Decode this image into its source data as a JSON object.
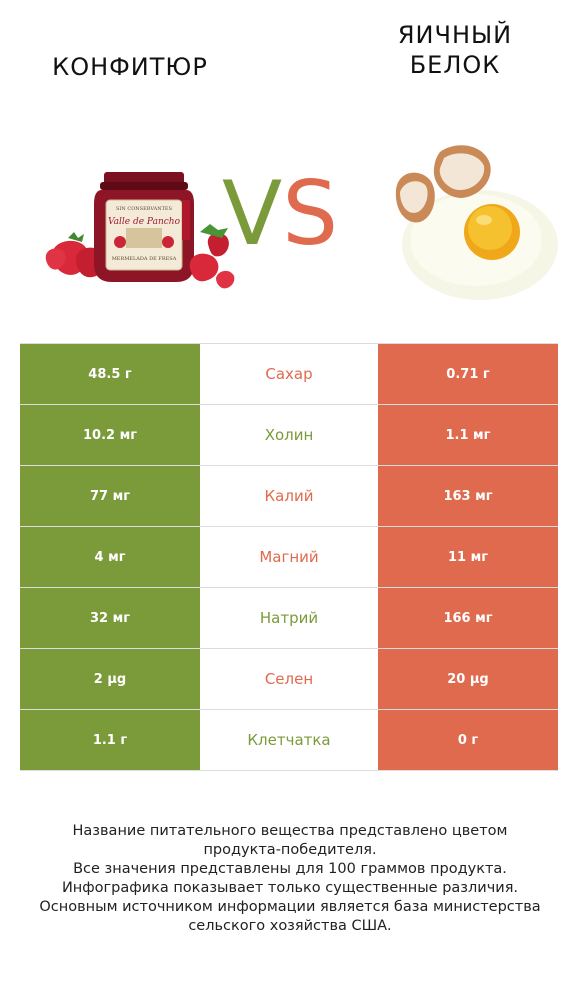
{
  "left_product": {
    "title": "КОНФИТЮР",
    "color": "#7b9a3a"
  },
  "right_product": {
    "title_line1": "ЯИЧНЫЙ",
    "title_line2": "БЕЛОК",
    "color": "#e06a4e"
  },
  "vs": {
    "v": "V",
    "s": "S"
  },
  "rows": [
    {
      "nutrient": "Сахар",
      "left": "48.5 г",
      "right": "0.71 г",
      "winner": "right"
    },
    {
      "nutrient": "Холин",
      "left": "10.2 мг",
      "right": "1.1 мг",
      "winner": "left"
    },
    {
      "nutrient": "Калий",
      "left": "77 мг",
      "right": "163 мг",
      "winner": "right"
    },
    {
      "nutrient": "Магний",
      "left": "4 мг",
      "right": "11 мг",
      "winner": "right"
    },
    {
      "nutrient": "Натрий",
      "left": "32 мг",
      "right": "166 мг",
      "winner": "left"
    },
    {
      "nutrient": "Селен",
      "left": "2 µg",
      "right": "20 µg",
      "winner": "right"
    },
    {
      "nutrient": "Клетчатка",
      "left": "1.1 г",
      "right": "0 г",
      "winner": "left"
    }
  ],
  "footer": {
    "line1": "Название питательного вещества представлено цветом",
    "line2": "продукта-победителя.",
    "line3": "Все значения представлены для 100 граммов продукта.",
    "line4": "Инфографика показывает только существенные различия.",
    "line5": "Основным источником информации является база министерства",
    "line6": "сельского хозяйства США."
  },
  "jar_label": {
    "top": "SIN CONSERVANTES",
    "brand": "Valle de Pancho",
    "product": "MERMELADA DE FRESA"
  },
  "icons": [
    "strawberry-jam-jar-image",
    "cracked-egg-image"
  ]
}
